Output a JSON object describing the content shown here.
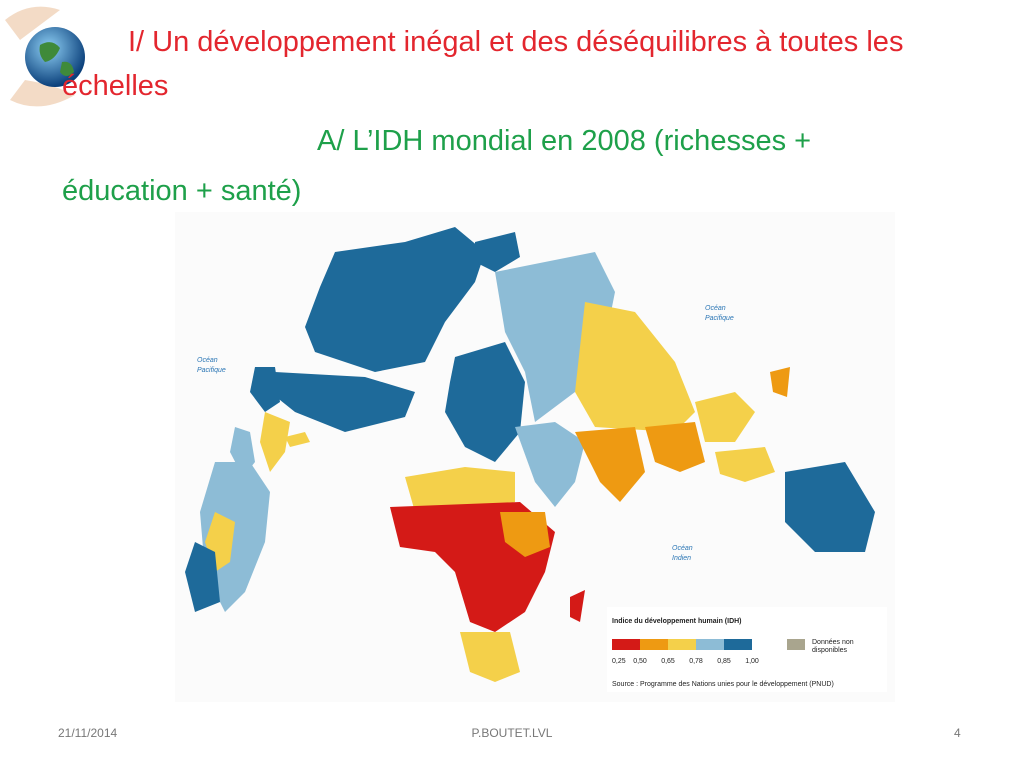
{
  "slide": {
    "title": "I/ Un développement inégal et des déséquilibres à toutes les échelles",
    "subtitle": "A/ L’IDH mondial en 2008 (richesses + éducation + santé)",
    "map": {
      "ocean_labels": [
        [
          "Océan",
          "Pacifique"
        ],
        [
          "Océan",
          "Pacifique"
        ],
        [
          "Océan",
          "Indien"
        ]
      ],
      "legend": {
        "title": "Indice du développement humain (IDH)",
        "ticks": [
          "0,25",
          "0,50",
          "0,65",
          "0,78",
          "0,85",
          "1,00"
        ],
        "no_data": [
          "Données non",
          "disponibles"
        ],
        "source": "Source : Programme des Nations unies pour le développement (PNUD)"
      }
    },
    "footer": {
      "date": "21/11/2014",
      "author": "P.BOUTET.LVL",
      "page": "4"
    }
  }
}
